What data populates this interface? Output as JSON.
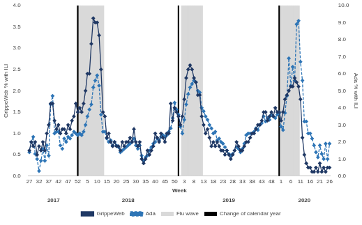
{
  "chart_data": {
    "type": "line",
    "x_label": "Week",
    "y_label": "GrippeWeb % with ILI",
    "y2_label": "Ada % with ILI",
    "categories": [
      "27",
      null,
      null,
      null,
      null,
      "32",
      null,
      null,
      null,
      null,
      "37",
      null,
      null,
      null,
      null,
      "42",
      null,
      null,
      null,
      null,
      "47",
      null,
      null,
      null,
      null,
      "52",
      null,
      null,
      null,
      null,
      "5",
      null,
      null,
      null,
      null,
      "10",
      null,
      null,
      null,
      null,
      "15",
      null,
      null,
      null,
      null,
      "20",
      null,
      null,
      null,
      null,
      "25",
      null,
      null,
      null,
      null,
      "30",
      null,
      null,
      null,
      null,
      "35",
      null,
      null,
      null,
      null,
      "40",
      null,
      null,
      null,
      null,
      "45",
      null,
      null,
      null,
      null,
      "50",
      null,
      null,
      null,
      null,
      "3",
      null,
      null,
      null,
      null,
      "8",
      null,
      null,
      null,
      null,
      "13",
      null,
      null,
      null,
      null,
      "18",
      null,
      null,
      null,
      null,
      "23",
      null,
      null,
      null,
      null,
      "28",
      null,
      null,
      null,
      null,
      "33",
      null,
      null,
      null,
      null,
      "38",
      null,
      null,
      null,
      null,
      "43",
      null,
      null,
      null,
      null,
      "48",
      null,
      null,
      null,
      null,
      "1",
      null,
      null,
      null,
      null,
      "6",
      null,
      null,
      null,
      null,
      "11",
      null,
      null,
      null,
      null,
      "16",
      null,
      null,
      null,
      null,
      "21",
      null,
      null,
      null,
      null,
      "26"
    ],
    "series": [
      {
        "name": "GrippeWeb",
        "color": "#1f3864",
        "line_style": "solid",
        "marker": "diamond",
        "values": [
          0.6,
          0.8,
          0.7,
          0.8,
          0.5,
          0.7,
          0.6,
          0.8,
          0.6,
          1.0,
          1.2,
          1.7,
          1.7,
          1.3,
          1.1,
          1.2,
          1.0,
          1.1,
          1.1,
          1.0,
          1.2,
          1.1,
          1.3,
          1.4,
          1.7,
          1.5,
          1.6,
          1.5,
          1.7,
          2.0,
          2.4,
          2.4,
          3.1,
          3.7,
          3.6,
          3.6,
          3.3,
          2.5,
          1.5,
          1.4,
          0.9,
          1.0,
          0.8,
          0.7,
          0.8,
          0.7,
          0.7,
          0.6,
          0.8,
          0.7,
          0.8,
          0.8,
          0.9,
          0.8,
          1.1,
          0.8,
          0.7,
          0.8,
          0.4,
          0.3,
          0.4,
          0.6,
          0.5,
          0.6,
          0.7,
          1.0,
          0.9,
          0.8,
          1.0,
          0.9,
          0.8,
          1.0,
          1.0,
          1.7,
          1.3,
          1.6,
          1.5,
          1.4,
          1.2,
          1.4,
          1.8,
          2.3,
          2.5,
          2.6,
          2.5,
          2.3,
          2.2,
          1.9,
          1.9,
          1.4,
          1.2,
          1.0,
          1.1,
          0.9,
          0.7,
          0.8,
          0.7,
          0.8,
          0.7,
          0.6,
          0.6,
          0.5,
          0.6,
          0.5,
          0.4,
          0.5,
          0.6,
          0.8,
          0.7,
          0.6,
          0.6,
          0.7,
          0.8,
          0.8,
          0.9,
          1.0,
          1.0,
          1.1,
          1.2,
          1.2,
          1.3,
          1.5,
          1.5,
          1.3,
          1.4,
          1.5,
          1.4,
          1.6,
          1.5,
          1.5,
          1.3,
          1.5,
          1.8,
          1.9,
          2.0,
          2.1,
          2.1,
          2.3,
          2.2,
          2.1,
          1.8,
          0.9,
          0.5,
          0.3,
          0.2,
          0.2,
          0.1,
          0.1,
          0.2,
          0.1,
          0.3,
          0.1,
          0.2,
          0.1,
          0.2,
          0.2
        ]
      },
      {
        "name": "Ada",
        "color": "#2e75b6",
        "line_style": "dashed",
        "marker": "diamond",
        "axis": "y2",
        "values": [
          1.4,
          2.0,
          2.3,
          1.3,
          1.0,
          0.3,
          0.9,
          1.6,
          0.9,
          1.8,
          1.2,
          4.2,
          4.7,
          2.5,
          2.6,
          2.6,
          1.8,
          1.6,
          2.2,
          2.0,
          2.3,
          2.2,
          2.4,
          2.6,
          2.5,
          2.4,
          2.5,
          2.4,
          2.6,
          3.0,
          3.5,
          3.9,
          4.2,
          5.2,
          5.6,
          5.9,
          5.3,
          3.6,
          2.6,
          2.6,
          2.2,
          2.0,
          2.1,
          1.8,
          2.0,
          1.8,
          1.7,
          1.4,
          1.5,
          1.6,
          1.7,
          1.8,
          1.9,
          2.0,
          2.2,
          1.8,
          1.6,
          1.8,
          1.2,
          0.9,
          1.1,
          1.2,
          1.5,
          1.7,
          1.9,
          2.0,
          2.2,
          2.1,
          2.3,
          2.4,
          2.3,
          2.4,
          2.6,
          2.8,
          3.4,
          4.3,
          3.9,
          3.6,
          2.9,
          2.5,
          3.3,
          4.2,
          4.8,
          5.2,
          5.4,
          5.6,
          5.5,
          5.0,
          4.9,
          4.0,
          3.8,
          3.5,
          3.3,
          3.0,
          2.8,
          2.5,
          2.6,
          2.1,
          2.2,
          2.0,
          1.9,
          1.7,
          1.5,
          1.3,
          1.2,
          1.3,
          1.5,
          1.7,
          1.6,
          1.4,
          1.6,
          1.9,
          2.4,
          2.5,
          2.5,
          2.5,
          2.6,
          2.8,
          2.7,
          3.0,
          3.1,
          3.5,
          3.2,
          3.4,
          3.3,
          3.6,
          3.5,
          3.4,
          3.6,
          3.7,
          2.9,
          2.7,
          3.7,
          4.7,
          6.9,
          5.3,
          6.4,
          5.6,
          8.9,
          9.1,
          6.7,
          5.6,
          3.2,
          3.2,
          2.5,
          2.5,
          2.2,
          1.8,
          1.4,
          1.1,
          1.8,
          1.3,
          1.0,
          1.9,
          1.0,
          1.9
        ]
      },
      {
        "name": "Flu wave",
        "type": "bar",
        "color": "#d9d9d9",
        "values": [
          null,
          null,
          null,
          null,
          null,
          null,
          null,
          null,
          null,
          null,
          null,
          null,
          null,
          null,
          null,
          null,
          null,
          null,
          null,
          null,
          null,
          null,
          null,
          null,
          null,
          4,
          4,
          4,
          4,
          4,
          4,
          4,
          4,
          4,
          4,
          4,
          4,
          4,
          4,
          null,
          null,
          null,
          null,
          null,
          null,
          null,
          null,
          null,
          null,
          null,
          null,
          null,
          null,
          null,
          null,
          null,
          null,
          null,
          null,
          null,
          null,
          null,
          null,
          null,
          null,
          null,
          null,
          null,
          null,
          null,
          null,
          null,
          null,
          null,
          null,
          null,
          null,
          null,
          null,
          4,
          4,
          4,
          4,
          4,
          4,
          4,
          4,
          4,
          4,
          4,
          null,
          null,
          null,
          null,
          null,
          null,
          null,
          null,
          null,
          null,
          null,
          null,
          null,
          null,
          null,
          null,
          null,
          null,
          null,
          null,
          null,
          null,
          null,
          null,
          null,
          null,
          null,
          null,
          null,
          null,
          null,
          null,
          null,
          null,
          null,
          null,
          null,
          null,
          null,
          null,
          4,
          4,
          4,
          4,
          4,
          4,
          4,
          4,
          4,
          4,
          null,
          null,
          null,
          null,
          null,
          null,
          null,
          null,
          null,
          null,
          null,
          null,
          null,
          null,
          null,
          null
        ]
      },
      {
        "name": "Change of calendar year",
        "type": "vline",
        "color": "#000000",
        "values": [
          null,
          null,
          null,
          null,
          null,
          null,
          null,
          null,
          null,
          null,
          null,
          null,
          null,
          null,
          null,
          null,
          null,
          null,
          null,
          null,
          null,
          null,
          null,
          null,
          null,
          4,
          null,
          null,
          null,
          null,
          null,
          null,
          null,
          null,
          null,
          null,
          null,
          null,
          null,
          null,
          null,
          null,
          null,
          null,
          null,
          null,
          null,
          null,
          null,
          null,
          null,
          null,
          null,
          null,
          null,
          null,
          null,
          null,
          null,
          null,
          null,
          null,
          null,
          null,
          null,
          null,
          null,
          null,
          null,
          null,
          null,
          null,
          null,
          null,
          null,
          null,
          null,
          4,
          null,
          null,
          null,
          null,
          null,
          null,
          null,
          null,
          null,
          null,
          null,
          null,
          null,
          null,
          null,
          null,
          null,
          null,
          null,
          null,
          null,
          null,
          null,
          null,
          null,
          null,
          null,
          null,
          null,
          null,
          null,
          null,
          null,
          null,
          null,
          null,
          null,
          null,
          null,
          null,
          null,
          null,
          null,
          null,
          null,
          null,
          null,
          null,
          null,
          null,
          null,
          4,
          null,
          null,
          null,
          null,
          null,
          null,
          null,
          null,
          null,
          null,
          null,
          null,
          null,
          null,
          null,
          null,
          null,
          null,
          null,
          null,
          null,
          null,
          null,
          null,
          null,
          null
        ]
      }
    ],
    "ylim": [
      0,
      4
    ],
    "yticks": [
      {
        "value": 0,
        "label": "0.0"
      },
      0.5,
      {
        "value": 1,
        "label": "1.0"
      },
      1.5,
      {
        "value": 2,
        "label": "2.0"
      },
      2.5,
      {
        "value": 3,
        "label": "3.0"
      },
      3.5,
      {
        "value": 4,
        "label": "4.0"
      }
    ],
    "y2lim": [
      0,
      10
    ],
    "y2ticks": [
      {
        "value": 0,
        "label": "0.0"
      },
      {
        "value": 1,
        "label": "1.0"
      },
      {
        "value": 2,
        "label": "2.0"
      },
      {
        "value": 3,
        "label": "3.0"
      },
      {
        "value": 4,
        "label": "4.0"
      },
      {
        "value": 5,
        "label": "5.0"
      },
      {
        "value": 6,
        "label": "6.0"
      },
      {
        "value": 7,
        "label": "7.0"
      },
      {
        "value": 8,
        "label": "8.0"
      },
      {
        "value": 9,
        "label": "9.0"
      },
      {
        "value": 10,
        "label": "10.0"
      }
    ],
    "annotations": [
      "2017",
      "2018",
      "2019",
      "2020"
    ],
    "grid": false,
    "legend": "bottom"
  }
}
